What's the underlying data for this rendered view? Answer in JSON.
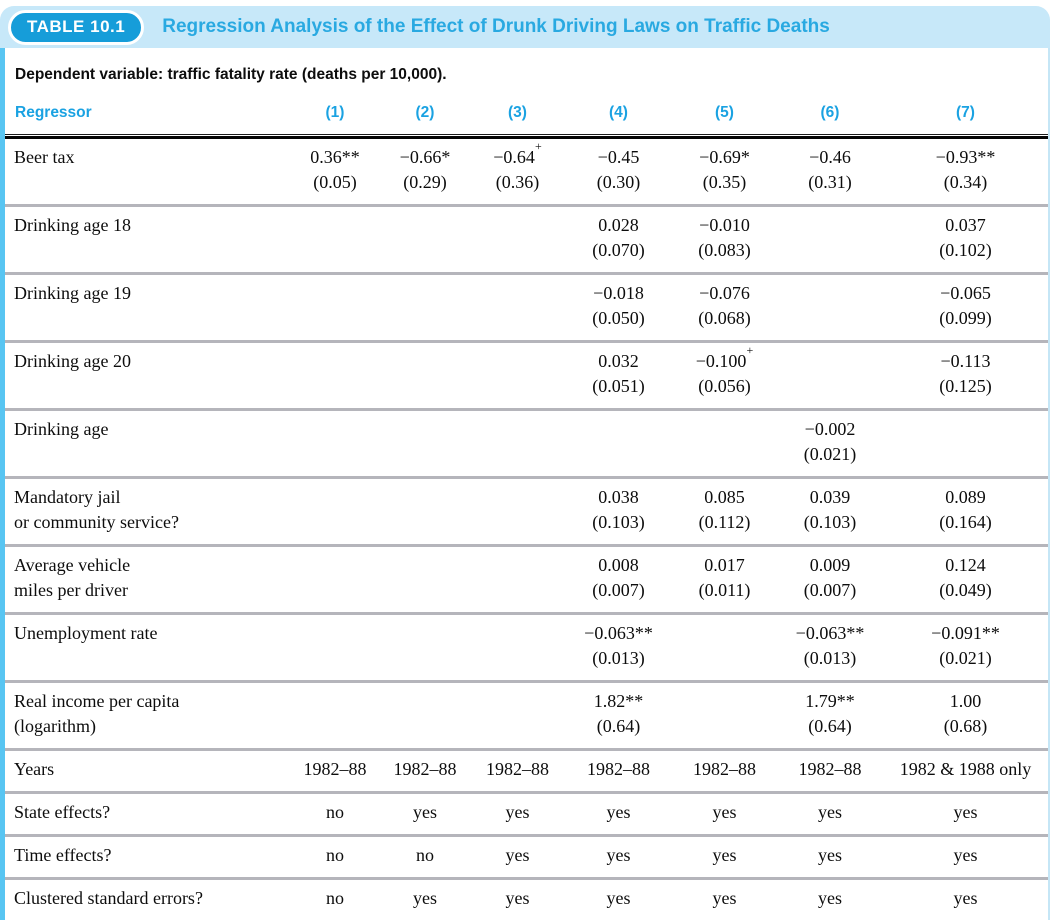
{
  "header": {
    "badge": "TABLE 10.1",
    "title": "Regression Analysis of the Effect of Drunk Driving Laws on Traffic Deaths"
  },
  "subtitle": "Dependent variable: traffic fatality rate (deaths per 10,000).",
  "colors": {
    "band_background": "#c7e8f9",
    "badge_blue": "#169dd9",
    "title_blue": "#29a9e1",
    "column_header_blue": "#1aa2e2",
    "left_edge_cyan": "#58c5f2",
    "row_separator_gray": "#b5b5bb"
  },
  "table": {
    "columns": [
      "Regressor",
      "(1)",
      "(2)",
      "(3)",
      "(4)",
      "(5)",
      "(6)",
      "(7)"
    ],
    "rows": [
      {
        "label": "Beer tax",
        "cells": [
          {
            "est": "0.36**",
            "se": "(0.05)"
          },
          {
            "est": "−0.66*",
            "se": "(0.29)"
          },
          {
            "est": "−0.64^+",
            "se": "(0.36)"
          },
          {
            "est": "−0.45",
            "se": "(0.30)"
          },
          {
            "est": "−0.69*",
            "se": "(0.35)"
          },
          {
            "est": "−0.46",
            "se": "(0.31)"
          },
          {
            "est": "−0.93**",
            "se": "(0.34)"
          }
        ]
      },
      {
        "label": "Drinking age 18",
        "cells": [
          null,
          null,
          null,
          {
            "est": "0.028",
            "se": "(0.070)"
          },
          {
            "est": "−0.010",
            "se": "(0.083)"
          },
          null,
          {
            "est": "0.037",
            "se": "(0.102)"
          }
        ]
      },
      {
        "label": "Drinking age 19",
        "cells": [
          null,
          null,
          null,
          {
            "est": "−0.018",
            "se": "(0.050)"
          },
          {
            "est": "−0.076",
            "se": "(0.068)"
          },
          null,
          {
            "est": "−0.065",
            "se": "(0.099)"
          }
        ]
      },
      {
        "label": "Drinking age 20",
        "cells": [
          null,
          null,
          null,
          {
            "est": "0.032",
            "se": "(0.051)"
          },
          {
            "est": "−0.100^+",
            "se": "(0.056)"
          },
          null,
          {
            "est": "−0.113",
            "se": "(0.125)"
          }
        ]
      },
      {
        "label": "Drinking age",
        "cells": [
          null,
          null,
          null,
          null,
          null,
          {
            "est": "−0.002",
            "se": "(0.021)"
          },
          null
        ]
      },
      {
        "label": "Mandatory jail\nor community service?",
        "cells": [
          null,
          null,
          null,
          {
            "est": "0.038",
            "se": "(0.103)"
          },
          {
            "est": "0.085",
            "se": "(0.112)"
          },
          {
            "est": "0.039",
            "se": "(0.103)"
          },
          {
            "est": "0.089",
            "se": "(0.164)"
          }
        ]
      },
      {
        "label": "Average vehicle\nmiles per driver",
        "cells": [
          null,
          null,
          null,
          {
            "est": "0.008",
            "se": "(0.007)"
          },
          {
            "est": "0.017",
            "se": "(0.011)"
          },
          {
            "est": "0.009",
            "se": "(0.007)"
          },
          {
            "est": "0.124",
            "se": "(0.049)"
          }
        ]
      },
      {
        "label": "Unemployment rate",
        "cells": [
          null,
          null,
          null,
          {
            "est": "−0.063**",
            "se": "(0.013)"
          },
          null,
          {
            "est": "−0.063**",
            "se": "(0.013)"
          },
          {
            "est": "−0.091**",
            "se": "(0.021)"
          }
        ]
      },
      {
        "label": "Real income per capita\n(logarithm)",
        "cells": [
          null,
          null,
          null,
          {
            "est": "1.82**",
            "se": "(0.64)"
          },
          null,
          {
            "est": "1.79**",
            "se": "(0.64)"
          },
          {
            "est": "1.00",
            "se": "(0.68)"
          }
        ]
      },
      {
        "label": "Years",
        "cells": [
          "1982–88",
          "1982–88",
          "1982–88",
          "1982–88",
          "1982–88",
          "1982–88",
          "1982 & 1988 only"
        ]
      },
      {
        "label": "State effects?",
        "cells": [
          "no",
          "yes",
          "yes",
          "yes",
          "yes",
          "yes",
          "yes"
        ]
      },
      {
        "label": "Time effects?",
        "cells": [
          "no",
          "no",
          "yes",
          "yes",
          "yes",
          "yes",
          "yes"
        ]
      },
      {
        "label": "Clustered standard errors?",
        "cells": [
          "no",
          "yes",
          "yes",
          "yes",
          "yes",
          "yes",
          "yes"
        ]
      }
    ]
  }
}
